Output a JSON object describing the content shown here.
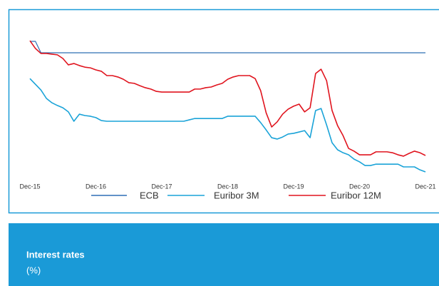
{
  "chart_data": {
    "type": "line",
    "title": "Interest rates",
    "subtitle": "(%)",
    "categories": [
      "Dec-15",
      null,
      null,
      null,
      null,
      null,
      null,
      null,
      null,
      null,
      null,
      null,
      "Dec-16",
      null,
      null,
      null,
      null,
      null,
      null,
      null,
      null,
      null,
      null,
      null,
      "Dec-17",
      null,
      null,
      null,
      null,
      null,
      null,
      null,
      null,
      null,
      null,
      null,
      "Dec-18",
      null,
      null,
      null,
      null,
      null,
      null,
      null,
      null,
      null,
      null,
      null,
      "Dec-19",
      null,
      null,
      null,
      null,
      null,
      null,
      null,
      null,
      null,
      null,
      null,
      "Dec-20",
      null,
      null,
      null,
      null,
      null,
      null,
      null,
      null,
      null,
      null,
      null,
      "Dec-21"
    ],
    "ylim": [
      -0.6,
      0.1
    ],
    "series": [
      {
        "name": "ECB",
        "color": "#2e6fb5",
        "values": [
          0.05,
          0.05,
          0,
          0,
          0,
          0,
          0,
          0,
          0,
          0,
          0,
          0,
          0,
          0,
          0,
          0,
          0,
          0,
          0,
          0,
          0,
          0,
          0,
          0,
          0,
          0,
          0,
          0,
          0,
          0,
          0,
          0,
          0,
          0,
          0,
          0,
          0,
          0,
          0,
          0,
          0,
          0,
          0,
          0,
          0,
          0,
          0,
          0,
          0,
          0,
          0,
          0,
          0,
          0,
          0,
          0,
          0,
          0,
          0,
          0,
          0,
          0,
          0,
          0,
          0,
          0,
          0,
          0,
          0,
          0,
          0,
          0,
          0
        ]
      },
      {
        "name": "Euribor 3M",
        "color": "#1aa3d8",
        "values": [
          -0.113,
          -0.138,
          -0.163,
          -0.2,
          -0.219,
          -0.231,
          -0.241,
          -0.259,
          -0.3,
          -0.269,
          -0.275,
          -0.278,
          -0.284,
          -0.297,
          -0.3,
          -0.3,
          -0.3,
          -0.3,
          -0.3,
          -0.3,
          -0.3,
          -0.3,
          -0.3,
          -0.3,
          -0.3,
          -0.3,
          -0.3,
          -0.3,
          -0.3,
          -0.294,
          -0.288,
          -0.288,
          -0.288,
          -0.288,
          -0.288,
          -0.288,
          -0.278,
          -0.278,
          -0.278,
          -0.278,
          -0.278,
          -0.278,
          -0.306,
          -0.338,
          -0.372,
          -0.378,
          -0.369,
          -0.356,
          -0.353,
          -0.347,
          -0.341,
          -0.372,
          -0.253,
          -0.244,
          -0.316,
          -0.394,
          -0.425,
          -0.438,
          -0.447,
          -0.466,
          -0.478,
          -0.494,
          -0.494,
          -0.488,
          -0.488,
          -0.488,
          -0.488,
          -0.488,
          -0.5,
          -0.5,
          -0.5,
          -0.513,
          -0.522
        ]
      },
      {
        "name": "Euribor 12M",
        "color": "#e0141e",
        "values": [
          0.053,
          0.019,
          -0.003,
          -0.003,
          -0.006,
          -0.009,
          -0.025,
          -0.053,
          -0.047,
          -0.056,
          -0.063,
          -0.066,
          -0.075,
          -0.081,
          -0.1,
          -0.1,
          -0.106,
          -0.116,
          -0.131,
          -0.134,
          -0.144,
          -0.153,
          -0.159,
          -0.169,
          -0.172,
          -0.172,
          -0.172,
          -0.172,
          -0.172,
          -0.172,
          -0.159,
          -0.159,
          -0.153,
          -0.15,
          -0.141,
          -0.134,
          -0.116,
          -0.106,
          -0.1,
          -0.1,
          -0.1,
          -0.113,
          -0.166,
          -0.263,
          -0.325,
          -0.303,
          -0.269,
          -0.247,
          -0.234,
          -0.225,
          -0.259,
          -0.241,
          -0.091,
          -0.072,
          -0.122,
          -0.253,
          -0.319,
          -0.363,
          -0.419,
          -0.431,
          -0.447,
          -0.447,
          -0.447,
          -0.434,
          -0.434,
          -0.434,
          -0.438,
          -0.447,
          -0.453,
          -0.441,
          -0.431,
          -0.438,
          -0.45
        ]
      }
    ]
  }
}
